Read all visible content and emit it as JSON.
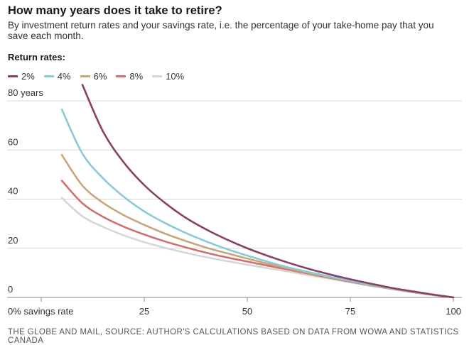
{
  "title": "How many years does it take to retire?",
  "subtitle": "By investment return rates and your savings rate, i.e. the percentage of your take-home pay that you save each month.",
  "legend_title": "Return rates:",
  "source": "THE GLOBE AND MAIL, SOURCE: AUTHOR'S CALCULATIONS BASED ON DATA FROM WOWA AND STATISTICS CANADA",
  "colors": {
    "2%": "#8b3f64",
    "4%": "#86cbd6",
    "6%": "#c9a679",
    "8%": "#d0706e",
    "10%": "#d6d6d6",
    "grid": "#d9d9d9",
    "axis": "#888888"
  },
  "chart_data": {
    "type": "line",
    "title": "How many years does it take to retire?",
    "xlim": [
      0,
      100
    ],
    "ylim": [
      0,
      80
    ],
    "x_ticks": [
      0,
      25,
      50,
      75,
      100
    ],
    "x_tick_labels": [
      "0% savings rate",
      "25",
      "50",
      "75",
      "100"
    ],
    "y_ticks": [
      0,
      20,
      40,
      60,
      80
    ],
    "y_tick_labels": [
      "0",
      "20",
      "40",
      "60",
      "80 years"
    ],
    "grid": true,
    "legend_position": "top-left",
    "series": [
      {
        "name": "2%",
        "x": [
          10,
          15,
          20,
          25,
          30,
          35,
          40,
          45,
          50,
          55,
          60,
          65,
          70,
          75,
          80,
          85,
          90,
          95,
          100
        ],
        "values": [
          86.5,
          67.5,
          55,
          45.7,
          38.5,
          32.5,
          27.7,
          23.6,
          20,
          16.9,
          14.1,
          11.6,
          9.4,
          7.4,
          5.6,
          3.9,
          2.5,
          1.2,
          0
        ]
      },
      {
        "name": "4%",
        "x": [
          5,
          10,
          15,
          20,
          25,
          30,
          35,
          40,
          45,
          50,
          55,
          60,
          65,
          70,
          75,
          80,
          85,
          90,
          95,
          100
        ],
        "values": [
          76.5,
          58.5,
          48.5,
          41,
          35,
          30.3,
          26.3,
          22.8,
          19.7,
          17,
          14.5,
          12.2,
          10.3,
          8.5,
          6.8,
          5.2,
          3.7,
          2.4,
          1.1,
          0
        ]
      },
      {
        "name": "6%",
        "x": [
          5,
          10,
          15,
          20,
          25,
          30,
          35,
          40,
          45,
          50,
          55,
          60,
          65,
          70,
          75,
          80,
          85,
          90,
          95,
          100
        ],
        "values": [
          58,
          45.5,
          38.5,
          33.5,
          29.5,
          26,
          23,
          20.3,
          18,
          15.8,
          13.7,
          11.8,
          9.9,
          8.2,
          6.6,
          5,
          3.6,
          2.3,
          1.1,
          0
        ]
      },
      {
        "name": "8%",
        "x": [
          5,
          10,
          15,
          20,
          25,
          30,
          35,
          40,
          45,
          50,
          55,
          60,
          65,
          70,
          75,
          80,
          85,
          90,
          95,
          100
        ],
        "values": [
          47.5,
          38.3,
          32.8,
          28.8,
          25.6,
          22.8,
          20.4,
          18.2,
          16.3,
          14.6,
          12.9,
          11.3,
          9.6,
          8,
          6.4,
          4.9,
          3.5,
          2.2,
          1,
          0
        ]
      },
      {
        "name": "10%",
        "x": [
          5,
          10,
          15,
          20,
          25,
          30,
          35,
          40,
          45,
          50,
          55,
          60,
          65,
          70,
          75,
          80,
          85,
          90,
          95,
          100
        ],
        "values": [
          40.5,
          33,
          28.7,
          25.3,
          22.5,
          20.2,
          18.2,
          16.4,
          14.8,
          13.3,
          11.9,
          10.5,
          9,
          7.6,
          6.1,
          4.7,
          3.4,
          2.1,
          1,
          0
        ]
      }
    ]
  }
}
